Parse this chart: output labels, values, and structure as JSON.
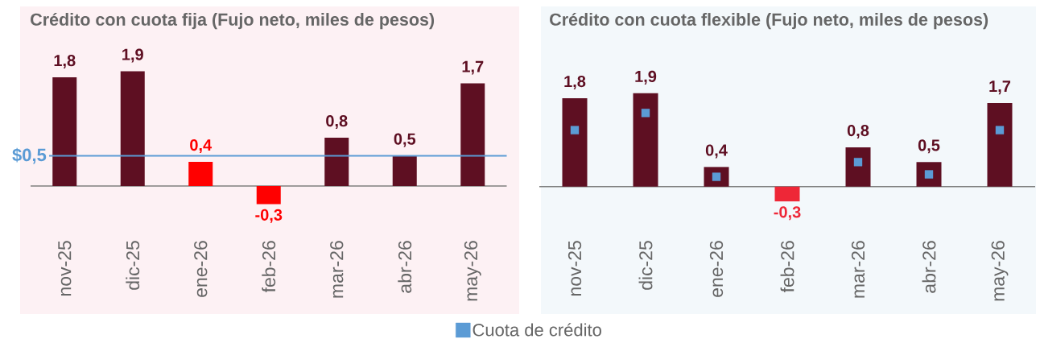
{
  "chart_data": [
    {
      "type": "bar",
      "title": "Crédito con cuota fija (Fujo neto, miles de pesos)",
      "categories": [
        "nov-25",
        "dic-25",
        "ene-26",
        "feb-26",
        "mar-26",
        "abr-26",
        "may-26"
      ],
      "series": [
        {
          "values": [
            1.8,
            1.9,
            0.4,
            -0.3,
            0.8,
            0.5,
            1.7
          ],
          "colors": [
            "#5e0f22",
            "#5e0f22",
            "#ff0000",
            "#ff0000",
            "#5e0f22",
            "#5e0f22",
            "#5e0f22"
          ],
          "value_labels": [
            "1,8",
            "1,9",
            "0,4",
            "-0,3",
            "0,8",
            "0,5",
            "1,7"
          ]
        }
      ],
      "ref_lines": [
        {
          "axis": "y",
          "value": 0.5,
          "label": "$0,5",
          "color": "#5b9bd5"
        }
      ]
    },
    {
      "type": "bar",
      "title": "Crédito con cuota flexible (Fujo neto, miles de pesos)",
      "categories": [
        "nov-25",
        "dic-25",
        "ene-26",
        "feb-26",
        "mar-26",
        "abr-26",
        "may-26"
      ],
      "series": [
        {
          "values": [
            1.8,
            1.9,
            0.4,
            -0.3,
            0.8,
            0.5,
            1.7
          ],
          "colors": [
            "#5e0f22",
            "#5e0f22",
            "#5e0f22",
            "#ee2737",
            "#5e0f22",
            "#5e0f22",
            "#5e0f22"
          ],
          "value_labels": [
            "1,8",
            "1,9",
            "0,4",
            "-0,3",
            "0,8",
            "0,5",
            "1,7"
          ]
        },
        {
          "name": "Cuota de crédito",
          "type": "scatter",
          "marker": "square",
          "color": "#5b9bd5",
          "values": [
            1.15,
            1.5,
            0.2,
            null,
            0.5,
            0.25,
            1.15
          ]
        }
      ],
      "legend": "bottom"
    }
  ]
}
